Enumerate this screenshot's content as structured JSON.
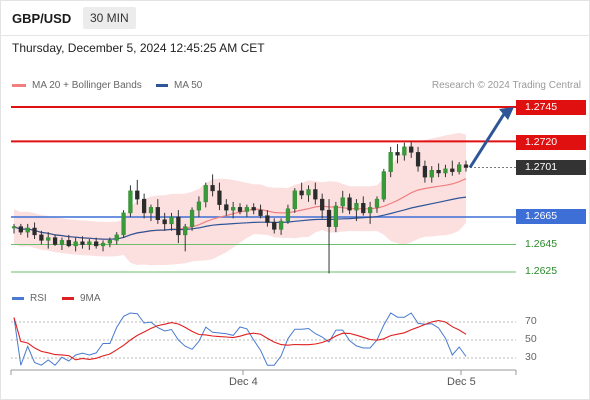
{
  "header": {
    "pair": "GBP/USD",
    "timeframe": "30 MIN"
  },
  "date_text": "Thursday, December 5, 2024 12:45:25 AM CET",
  "legend": {
    "ma20": {
      "label": "MA 20 + Bollinger Bands",
      "color": "#f08080"
    },
    "ma50": {
      "label": "MA 50",
      "color": "#2e5597"
    }
  },
  "credit": "Research © 2024 Trading Central",
  "rsi_legend": {
    "rsi": {
      "label": "RSI",
      "color": "#4a7bd0"
    },
    "ma9": {
      "label": "9MA",
      "color": "#e02020"
    }
  },
  "levels": {
    "r2": {
      "value": "1.2745",
      "color": "#e01010"
    },
    "r1": {
      "value": "1.2720",
      "color": "#e01010"
    },
    "current": {
      "value": "1.2701",
      "color": "#333333"
    },
    "pivot": {
      "value": "1.2665",
      "color": "#3d6fd6"
    },
    "s1": {
      "value": "1.2645",
      "color": "#2a8a2a"
    },
    "s2": {
      "value": "1.2625",
      "color": "#2a8a2a"
    }
  },
  "rsi_ticks": [
    "70",
    "50",
    "30"
  ],
  "x_ticks": [
    "Dec 4",
    "Dec 5"
  ],
  "chart_data": {
    "type": "candlestick",
    "ylim": [
      1.2615,
      1.276
    ],
    "candles": [
      [
        1.2657,
        1.266,
        1.2653,
        1.2658
      ],
      [
        1.2658,
        1.266,
        1.2652,
        1.2654
      ],
      [
        1.2654,
        1.266,
        1.265,
        1.2657
      ],
      [
        1.2657,
        1.2661,
        1.2649,
        1.2652
      ],
      [
        1.2652,
        1.2655,
        1.2645,
        1.2648
      ],
      [
        1.2648,
        1.2654,
        1.2642,
        1.265
      ],
      [
        1.265,
        1.2652,
        1.2644,
        1.2645
      ],
      [
        1.2645,
        1.265,
        1.2641,
        1.2648
      ],
      [
        1.2648,
        1.2652,
        1.2643,
        1.2644
      ],
      [
        1.2644,
        1.265,
        1.264,
        1.2647
      ],
      [
        1.2647,
        1.2651,
        1.2642,
        1.2645
      ],
      [
        1.2645,
        1.2649,
        1.2641,
        1.2647
      ],
      [
        1.2647,
        1.265,
        1.2642,
        1.2644
      ],
      [
        1.2644,
        1.2648,
        1.264,
        1.2646
      ],
      [
        1.2646,
        1.265,
        1.2643,
        1.2648
      ],
      [
        1.2648,
        1.2654,
        1.2645,
        1.2652
      ],
      [
        1.2652,
        1.267,
        1.265,
        1.2668
      ],
      [
        1.2668,
        1.2688,
        1.2665,
        1.2684
      ],
      [
        1.2684,
        1.2692,
        1.2674,
        1.2678
      ],
      [
        1.2678,
        1.2682,
        1.2664,
        1.2668
      ],
      [
        1.2668,
        1.2674,
        1.2662,
        1.2672
      ],
      [
        1.2672,
        1.2678,
        1.266,
        1.2663
      ],
      [
        1.2663,
        1.2668,
        1.2655,
        1.266
      ],
      [
        1.266,
        1.2668,
        1.2655,
        1.2665
      ],
      [
        1.2665,
        1.267,
        1.2646,
        1.2652
      ],
      [
        1.2652,
        1.266,
        1.264,
        1.2658
      ],
      [
        1.2658,
        1.2672,
        1.2655,
        1.267
      ],
      [
        1.267,
        1.268,
        1.2665,
        1.2676
      ],
      [
        1.2676,
        1.269,
        1.2672,
        1.2688
      ],
      [
        1.2688,
        1.2696,
        1.268,
        1.2684
      ],
      [
        1.2684,
        1.269,
        1.267,
        1.2674
      ],
      [
        1.2674,
        1.2678,
        1.2666,
        1.267
      ],
      [
        1.267,
        1.2676,
        1.2664,
        1.2672
      ],
      [
        1.2672,
        1.2675,
        1.2667,
        1.2669
      ],
      [
        1.2669,
        1.2674,
        1.2665,
        1.2672
      ],
      [
        1.2672,
        1.2675,
        1.2667,
        1.267
      ],
      [
        1.267,
        1.2674,
        1.2664,
        1.2666
      ],
      [
        1.2666,
        1.267,
        1.2658,
        1.2661
      ],
      [
        1.2661,
        1.2664,
        1.2653,
        1.2656
      ],
      [
        1.2656,
        1.2664,
        1.2652,
        1.2662
      ],
      [
        1.2662,
        1.2674,
        1.266,
        1.2671
      ],
      [
        1.2671,
        1.2686,
        1.2668,
        1.2684
      ],
      [
        1.2684,
        1.269,
        1.2678,
        1.2681
      ],
      [
        1.2681,
        1.2688,
        1.2676,
        1.2685
      ],
      [
        1.2685,
        1.269,
        1.2674,
        1.2678
      ],
      [
        1.2678,
        1.2682,
        1.2664,
        1.267
      ],
      [
        1.267,
        1.2678,
        1.2624,
        1.2658
      ],
      [
        1.2658,
        1.2676,
        1.2654,
        1.2673
      ],
      [
        1.2673,
        1.2684,
        1.2668,
        1.2679
      ],
      [
        1.2679,
        1.2682,
        1.2667,
        1.267
      ],
      [
        1.267,
        1.2678,
        1.2662,
        1.2675
      ],
      [
        1.2675,
        1.268,
        1.2666,
        1.2668
      ],
      [
        1.2668,
        1.2676,
        1.266,
        1.2672
      ],
      [
        1.2672,
        1.268,
        1.2668,
        1.2678
      ],
      [
        1.2678,
        1.27,
        1.2676,
        1.2698
      ],
      [
        1.2698,
        1.2716,
        1.2694,
        1.2712
      ],
      [
        1.2712,
        1.2718,
        1.2704,
        1.271
      ],
      [
        1.271,
        1.2719,
        1.2706,
        1.2716
      ],
      [
        1.2716,
        1.272,
        1.2708,
        1.2712
      ],
      [
        1.2712,
        1.2716,
        1.2698,
        1.2702
      ],
      [
        1.2702,
        1.2706,
        1.269,
        1.2694
      ],
      [
        1.2694,
        1.2702,
        1.269,
        1.2699
      ],
      [
        1.2699,
        1.2704,
        1.2694,
        1.2697
      ],
      [
        1.2697,
        1.2703,
        1.2694,
        1.27
      ],
      [
        1.27,
        1.2706,
        1.2695,
        1.2698
      ],
      [
        1.2698,
        1.2705,
        1.2696,
        1.2703
      ],
      [
        1.2703,
        1.2706,
        1.2698,
        1.2701
      ]
    ],
    "target": 1.2745,
    "rsi_range": [
      20,
      80
    ]
  }
}
